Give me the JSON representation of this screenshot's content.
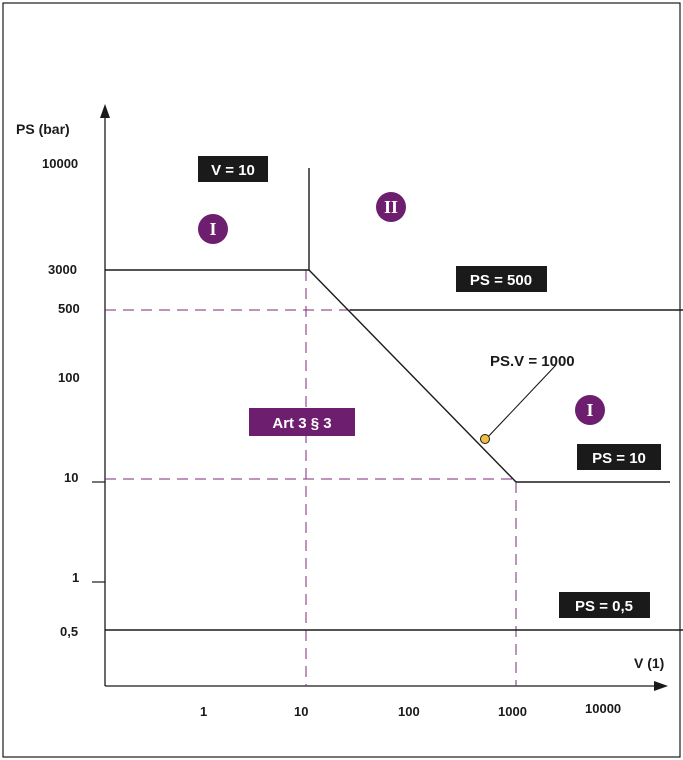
{
  "colors": {
    "line": "#1a1a1a",
    "dashed": "#7a2a7a",
    "purple": "#6e1e6e",
    "box": "#1a1a1a",
    "marker": "#f0c040"
  },
  "axes": {
    "y_label": "PS (bar)",
    "x_label": "V (1)",
    "y_ticks": [
      "10000",
      "3000",
      "500",
      "100",
      "10",
      "1",
      "0,5"
    ],
    "x_ticks": [
      "1",
      "10",
      "100",
      "1000",
      "10000"
    ]
  },
  "labels": {
    "v10": "V = 10",
    "ps500": "PS = 500",
    "psv1000": "PS.V = 1000",
    "ps10": "PS = 10",
    "ps05": "PS = 0,5",
    "art": "Art 3 § 3"
  },
  "categories": {
    "cat_i_top_left": "I",
    "cat_ii": "II",
    "cat_i_right": "I"
  }
}
